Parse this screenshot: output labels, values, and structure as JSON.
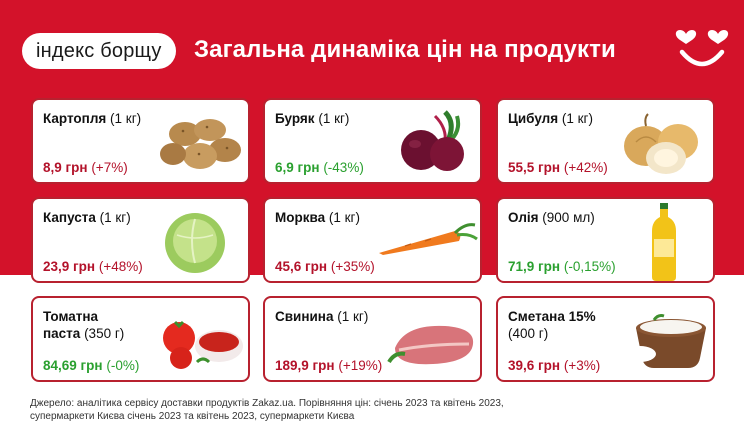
{
  "header": {
    "badge": "індекс борщу",
    "title": "Загальна динаміка цін на продукти"
  },
  "colors": {
    "brand_red": "#d3122a",
    "price_up": "#b3122a",
    "price_down": "#2aa02f"
  },
  "products": [
    {
      "name": "Картопля",
      "qty": "(1 кг)",
      "price": "8,9 грн",
      "change": "(+7%)",
      "trend": "up",
      "icon": "potato-icon"
    },
    {
      "name": "Буряк",
      "qty": "(1 кг)",
      "price": "6,9 грн",
      "change": "(-43%)",
      "trend": "down",
      "icon": "beet-icon"
    },
    {
      "name": "Цибуля",
      "qty": "(1 кг)",
      "price": "55,5 грн",
      "change": "(+42%)",
      "trend": "up",
      "icon": "onion-icon"
    },
    {
      "name": "Капуста",
      "qty": "(1 кг)",
      "price": "23,9 грн",
      "change": "(+48%)",
      "trend": "up",
      "icon": "cabbage-icon"
    },
    {
      "name": "Морква",
      "qty": "(1 кг)",
      "price": "45,6 грн",
      "change": "(+35%)",
      "trend": "up",
      "icon": "carrot-icon"
    },
    {
      "name": "Олія",
      "qty": "(900 мл)",
      "price": "71,9 грн",
      "change": "(-0,15%)",
      "trend": "down",
      "icon": "oil-bottle-icon"
    },
    {
      "name": "Томатна паста",
      "qty": "(350 г)",
      "price": "84,69 грн",
      "change": "(-0%)",
      "trend": "down",
      "icon": "tomato-paste-icon"
    },
    {
      "name": "Свинина",
      "qty": "(1 кг)",
      "price": "189,9 грн",
      "change": "(+19%)",
      "trend": "up",
      "icon": "pork-icon"
    },
    {
      "name": "Сметана 15%",
      "qty": "(400 г)",
      "price": "39,6 грн",
      "change": "(+3%)",
      "trend": "up",
      "icon": "sour-cream-icon"
    }
  ],
  "footer": {
    "line1": "Джерело: аналітика сервісу доставки продуктів Zakaz.ua.  Порівняння цін: січень 2023 та квітень 2023,",
    "line2": "супермаркети Києва січень 2023 та квітень 2023, супермаркети Києва"
  }
}
